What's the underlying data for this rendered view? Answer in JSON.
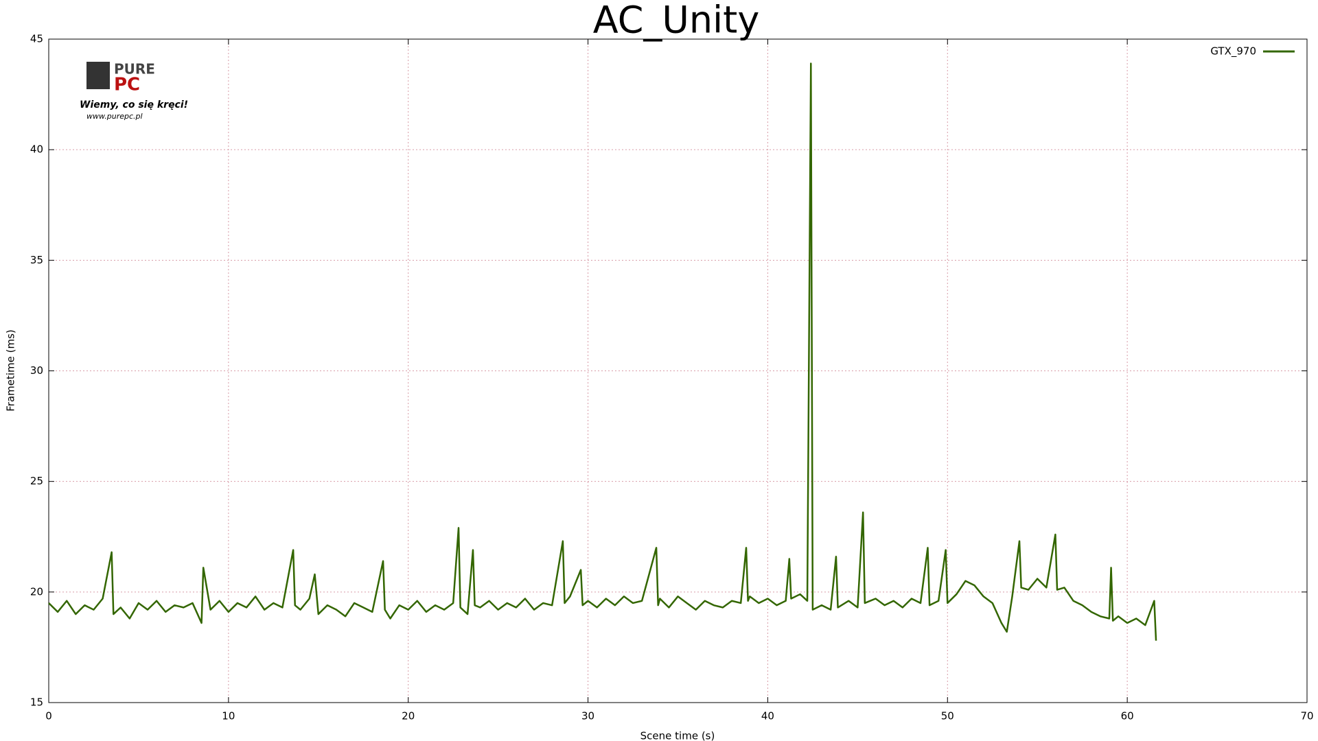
{
  "chart_data": {
    "type": "line",
    "title": "AC_Unity",
    "x_label": "Scene time (s)",
    "y_label": "Frametime (ms)",
    "logo": {
      "brand_top": "PURE",
      "brand_bottom": "PC",
      "slogan": "Wiemy, co się kręci!",
      "url": "www.purepc.pl"
    },
    "xlim": [
      0,
      70
    ],
    "ylim": [
      15,
      45
    ],
    "xticks": [
      0,
      10,
      20,
      30,
      40,
      50,
      60,
      70
    ],
    "yticks": [
      15,
      20,
      25,
      30,
      35,
      40,
      45
    ],
    "grid": true,
    "legend": "top-right",
    "x": [
      0,
      0.5,
      1,
      1.5,
      2,
      2.5,
      3,
      3.5,
      3.6,
      4,
      4.5,
      5,
      5.5,
      6,
      6.5,
      7,
      7.5,
      8,
      8.5,
      8.6,
      9,
      9.5,
      10,
      10.5,
      11,
      11.5,
      12,
      12.5,
      13,
      13.6,
      13.7,
      14,
      14.5,
      14.8,
      15,
      15.5,
      16,
      16.5,
      17,
      17.5,
      18,
      18.6,
      18.7,
      19,
      19.5,
      20,
      20.5,
      21,
      21.5,
      22,
      22.5,
      22.8,
      22.9,
      23.3,
      23.6,
      23.7,
      24,
      24.5,
      25,
      25.5,
      26,
      26.5,
      27,
      27.5,
      28,
      28.6,
      28.7,
      29,
      29.6,
      29.7,
      30,
      30.5,
      31,
      31.5,
      32,
      32.5,
      33,
      33.8,
      33.9,
      34,
      34.5,
      35,
      35.5,
      36,
      36.5,
      37,
      37.5,
      38,
      38.5,
      38.8,
      38.9,
      39,
      39.5,
      40,
      40.5,
      41,
      41.2,
      41.3,
      41.8,
      42.2,
      42.4,
      42.5,
      43,
      43.5,
      43.8,
      43.9,
      44.5,
      45,
      45.3,
      45.4,
      46,
      46.5,
      47,
      47.5,
      48,
      48.5,
      48.9,
      49,
      49.5,
      49.9,
      50,
      50.5,
      51,
      51.5,
      52,
      52.5,
      53,
      53.3,
      53.6,
      54,
      54.1,
      54.5,
      55,
      55.5,
      56,
      56.1,
      56.5,
      57,
      57.5,
      58,
      58.5,
      59,
      59.1,
      59.2,
      59.5,
      60,
      60.5,
      61,
      61.5,
      61.6
    ],
    "series": [
      {
        "name": "GTX_970",
        "color": "#336600",
        "values": [
          19.5,
          19.1,
          19.6,
          19.0,
          19.4,
          19.2,
          19.7,
          21.8,
          19.0,
          19.3,
          18.8,
          19.5,
          19.2,
          19.6,
          19.1,
          19.4,
          19.3,
          19.5,
          18.6,
          21.1,
          19.2,
          19.6,
          19.1,
          19.5,
          19.3,
          19.8,
          19.2,
          19.5,
          19.3,
          21.9,
          19.4,
          19.2,
          19.7,
          20.8,
          19.0,
          19.4,
          19.2,
          18.9,
          19.5,
          19.3,
          19.1,
          21.4,
          19.2,
          18.8,
          19.4,
          19.2,
          19.6,
          19.1,
          19.4,
          19.2,
          19.5,
          22.9,
          19.3,
          19.0,
          21.9,
          19.4,
          19.3,
          19.6,
          19.2,
          19.5,
          19.3,
          19.7,
          19.2,
          19.5,
          19.4,
          22.3,
          19.5,
          19.8,
          21.0,
          19.4,
          19.6,
          19.3,
          19.7,
          19.4,
          19.8,
          19.5,
          19.6,
          22.0,
          19.4,
          19.7,
          19.3,
          19.8,
          19.5,
          19.2,
          19.6,
          19.4,
          19.3,
          19.6,
          19.5,
          22.0,
          19.6,
          19.8,
          19.5,
          19.7,
          19.4,
          19.6,
          21.5,
          19.7,
          19.9,
          19.6,
          43.9,
          19.2,
          19.4,
          19.2,
          21.6,
          19.3,
          19.6,
          19.3,
          23.6,
          19.5,
          19.7,
          19.4,
          19.6,
          19.3,
          19.7,
          19.5,
          22.0,
          19.4,
          19.6,
          21.9,
          19.5,
          19.9,
          20.5,
          20.3,
          19.8,
          19.5,
          18.6,
          18.2,
          19.8,
          22.3,
          20.2,
          20.1,
          20.6,
          20.2,
          22.6,
          20.1,
          20.2,
          19.6,
          19.4,
          19.1,
          18.9,
          18.8,
          21.1,
          18.7,
          18.9,
          18.6,
          18.8,
          18.5,
          19.6,
          17.8
        ]
      }
    ]
  }
}
